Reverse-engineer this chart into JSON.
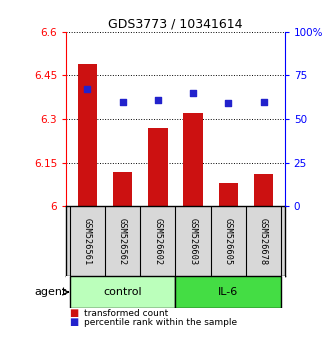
{
  "title": "GDS3773 / 10341614",
  "samples": [
    "GSM526561",
    "GSM526562",
    "GSM526602",
    "GSM526603",
    "GSM526605",
    "GSM526678"
  ],
  "bar_values": [
    6.49,
    6.12,
    6.27,
    6.32,
    6.08,
    6.11
  ],
  "percentile_values": [
    67,
    60,
    61,
    65,
    59,
    60
  ],
  "ylim_left": [
    6.0,
    6.6
  ],
  "ylim_right": [
    0,
    100
  ],
  "yticks_left": [
    6.0,
    6.15,
    6.3,
    6.45,
    6.6
  ],
  "ytick_labels_left": [
    "6",
    "6.15",
    "6.3",
    "6.45",
    "6.6"
  ],
  "yticks_right": [
    0,
    25,
    50,
    75,
    100
  ],
  "ytick_labels_right": [
    "0",
    "25",
    "50",
    "75",
    "100%"
  ],
  "bar_color": "#cc1111",
  "dot_color": "#2222cc",
  "grid_color": "#000000",
  "control_color": "#bbffbb",
  "il6_color": "#44dd44",
  "agent_label": "agent",
  "control_label": "control",
  "il6_label": "IL-6",
  "legend_bar_label": "transformed count",
  "legend_dot_label": "percentile rank within the sample",
  "sample_bg_color": "#d8d8d8",
  "n_control": 3,
  "n_il6": 3
}
